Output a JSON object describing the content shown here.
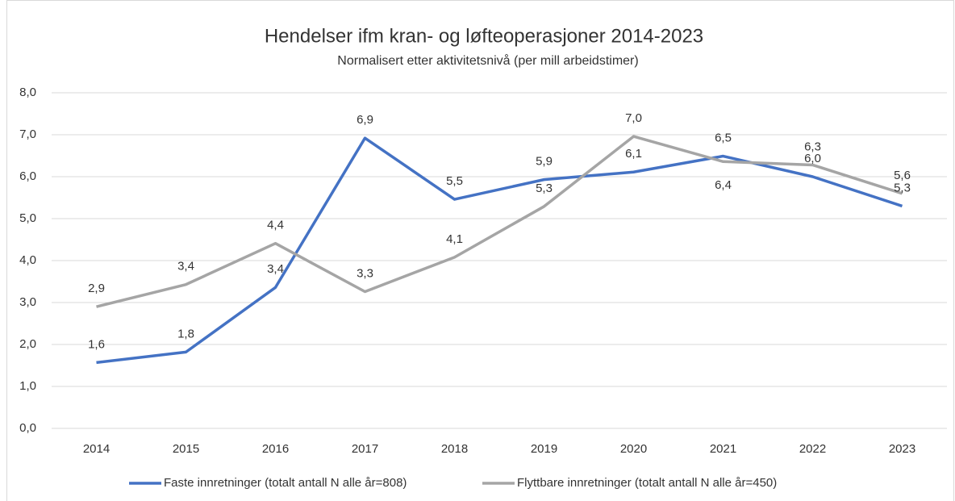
{
  "chart_data": {
    "type": "line",
    "title": "Hendelser ifm kran- og løfteoperasjoner 2014-2023",
    "subtitle": "Normalisert etter aktivitetsnivå (per mill arbeidstimer)",
    "categories": [
      "2014",
      "2015",
      "2016",
      "2017",
      "2018",
      "2019",
      "2020",
      "2021",
      "2022",
      "2023"
    ],
    "series": [
      {
        "name": "Faste innretninger (totalt antall N alle år=808)",
        "color": "#4472c4",
        "values": [
          1.57,
          1.82,
          3.36,
          6.92,
          5.46,
          5.93,
          6.11,
          6.49,
          6.0,
          5.3
        ],
        "value_labels": [
          "1,6",
          "1,8",
          "3,4",
          "6,9",
          "5,5",
          "5,9",
          "6,1",
          "6,5",
          "6,0",
          "5,3"
        ]
      },
      {
        "name": "Flyttbare innretninger (totalt antall N alle år=450)",
        "color": "#a5a5a5",
        "values": [
          2.9,
          3.43,
          4.41,
          3.26,
          4.08,
          5.29,
          6.96,
          6.36,
          6.28,
          5.6
        ],
        "value_labels": [
          "2,9",
          "3,4",
          "4,4",
          "3,3",
          "4,1",
          "5,3",
          "7,0",
          "6,4",
          "6,3",
          "5,6"
        ]
      }
    ],
    "ylim": [
      0,
      8
    ],
    "yticks": [
      {
        "value": 0,
        "label": "0,0"
      },
      {
        "value": 1,
        "label": "1,0"
      },
      {
        "value": 2,
        "label": "2,0"
      },
      {
        "value": 3,
        "label": "3,0"
      },
      {
        "value": 4,
        "label": "4,0"
      },
      {
        "value": 5,
        "label": "5,0"
      },
      {
        "value": 6,
        "label": "6,0"
      },
      {
        "value": 7,
        "label": "7,0"
      },
      {
        "value": 8,
        "label": "8,0"
      }
    ],
    "grid": true,
    "legend": "bottom"
  }
}
